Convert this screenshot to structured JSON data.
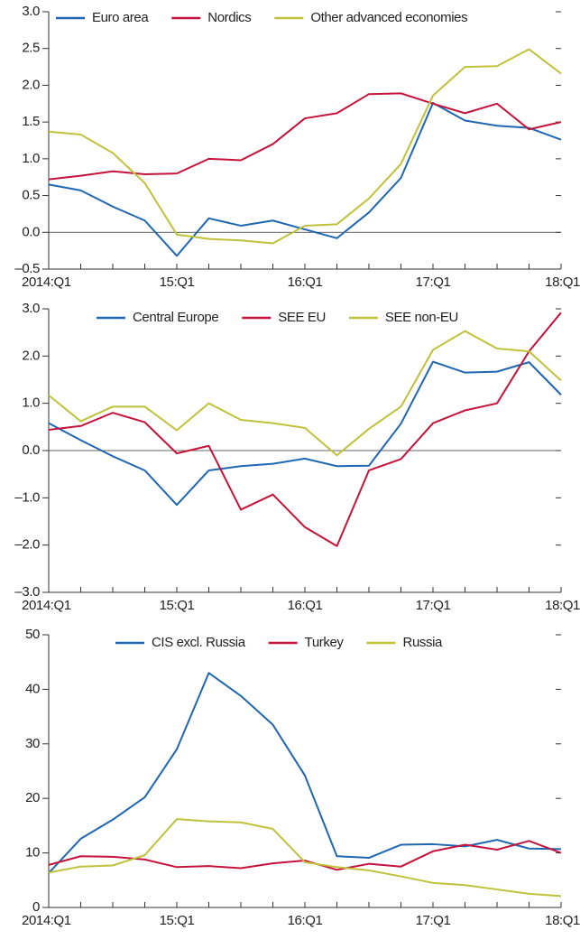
{
  "chart_data": [
    {
      "type": "line",
      "categories": [
        "2014:Q1",
        null,
        null,
        null,
        "15:Q1",
        null,
        null,
        null,
        "16:Q1",
        null,
        null,
        null,
        "17:Q1",
        null,
        null,
        null,
        "18:Q1"
      ],
      "ylim": [
        -0.5,
        3.0
      ],
      "yticks": [
        {
          "value": -0.5,
          "label": "–0.5"
        },
        {
          "value": 0,
          "label": "0.0"
        },
        0.5,
        {
          "value": 1,
          "label": "1.0"
        },
        1.5,
        {
          "value": 2,
          "label": "2.0"
        },
        2.5,
        {
          "value": 3,
          "label": "3.0"
        }
      ],
      "series": [
        {
          "name": "Euro area",
          "color": "#1f67b1",
          "values": [
            0.65,
            0.57,
            0.35,
            0.16,
            -0.32,
            0.19,
            0.09,
            0.16,
            0.04,
            -0.08,
            0.27,
            0.74,
            1.76,
            1.52,
            1.45,
            1.42,
            1.26
          ]
        },
        {
          "name": "Nordics",
          "color": "#c4143c",
          "values": [
            0.72,
            0.77,
            0.83,
            0.79,
            0.8,
            1.0,
            0.98,
            1.2,
            1.55,
            1.62,
            1.88,
            1.89,
            1.75,
            1.62,
            1.75,
            1.4,
            1.5
          ]
        },
        {
          "name": "Other advanced economies",
          "color": "#bfc23a",
          "values": [
            1.37,
            1.33,
            1.08,
            0.67,
            -0.03,
            -0.09,
            -0.11,
            -0.15,
            0.09,
            0.11,
            0.46,
            0.93,
            1.86,
            2.25,
            2.26,
            2.49,
            2.16
          ]
        }
      ]
    },
    {
      "type": "line",
      "categories": [
        "2014:Q1",
        null,
        null,
        null,
        "15:Q1",
        null,
        null,
        null,
        "16:Q1",
        null,
        null,
        null,
        "17:Q1",
        null,
        null,
        null,
        "18:Q1"
      ],
      "ylim": [
        -3.0,
        3.0
      ],
      "yticks": [
        {
          "value": -3,
          "label": "–3.0"
        },
        {
          "value": -2,
          "label": "–2.0"
        },
        {
          "value": -1,
          "label": "–1.0"
        },
        {
          "value": 0,
          "label": "0.0"
        },
        {
          "value": 1,
          "label": "1.0"
        },
        {
          "value": 2,
          "label": "2.0"
        },
        {
          "value": 3,
          "label": "3.0"
        }
      ],
      "series": [
        {
          "name": "Central Europe",
          "color": "#1f67b1",
          "values": [
            0.58,
            0.22,
            -0.12,
            -0.42,
            -1.15,
            -0.42,
            -0.33,
            -0.28,
            -0.17,
            -0.33,
            -0.32,
            0.57,
            1.88,
            1.65,
            1.67,
            1.87,
            1.18
          ]
        },
        {
          "name": "SEE EU",
          "color": "#c4143c",
          "values": [
            0.44,
            0.52,
            0.8,
            0.6,
            -0.06,
            0.1,
            -1.25,
            -0.93,
            -1.62,
            -2.02,
            -0.42,
            -0.18,
            0.58,
            0.85,
            1.0,
            2.1,
            2.92
          ]
        },
        {
          "name": "SEE non-EU",
          "color": "#bfc23a",
          "values": [
            1.17,
            0.62,
            0.93,
            0.93,
            0.43,
            1.0,
            0.65,
            0.58,
            0.48,
            -0.1,
            0.46,
            0.93,
            2.13,
            2.53,
            2.16,
            2.1,
            1.48
          ]
        }
      ]
    },
    {
      "type": "line",
      "categories": [
        "2014:Q1",
        null,
        null,
        null,
        "15:Q1",
        null,
        null,
        null,
        "16:Q1",
        null,
        null,
        null,
        "17:Q1",
        null,
        null,
        null,
        "18:Q1"
      ],
      "ylim": [
        0,
        50
      ],
      "yticks": [
        0,
        10,
        20,
        30,
        40,
        50
      ],
      "series": [
        {
          "name": "CIS excl. Russia",
          "color": "#1f67b1",
          "values": [
            6.3,
            12.6,
            16.1,
            20.2,
            29,
            43,
            38.8,
            33.5,
            24.2,
            9.4,
            9.1,
            11.5,
            11.6,
            11.2,
            12.4,
            10.8,
            10.7
          ]
        },
        {
          "name": "Turkey",
          "color": "#c4143c",
          "values": [
            7.8,
            9.4,
            9.3,
            8.8,
            7.4,
            7.6,
            7.2,
            8.1,
            8.6,
            6.9,
            8.0,
            7.5,
            10.3,
            11.5,
            10.6,
            12.2,
            10.0
          ]
        },
        {
          "name": "Russia",
          "color": "#bfc23a",
          "values": [
            6.4,
            7.5,
            7.7,
            9.6,
            16.2,
            15.8,
            15.6,
            14.4,
            8.3,
            7.4,
            6.8,
            5.7,
            4.5,
            4.1,
            3.3,
            2.5,
            2.1
          ]
        }
      ]
    }
  ]
}
